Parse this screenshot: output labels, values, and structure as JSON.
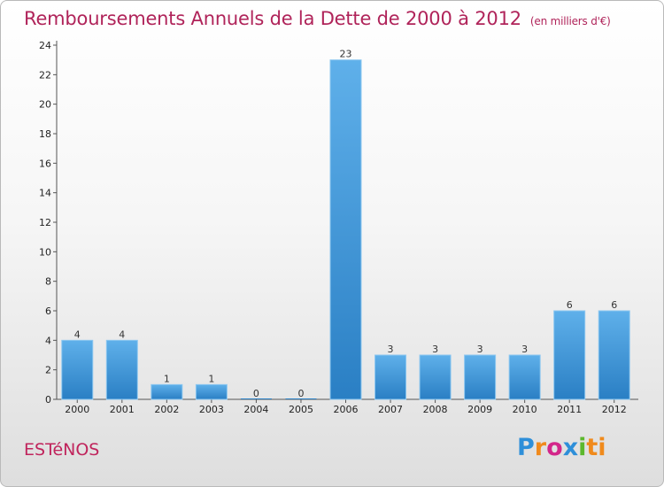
{
  "title": "Remboursements Annuels de la Dette de 2000 à 2012",
  "subtitle": "(en milliers d'€)",
  "commune": "ESTéNOS",
  "logo": {
    "l1": "P",
    "l2": "r",
    "l3": "o",
    "l4": "x",
    "l5": "i",
    "l6": "ti"
  },
  "colors": {
    "bar_top": "#5fb0ea",
    "bar_bottom": "#2a7fc4",
    "title": "#b0245a",
    "axis": "#555555",
    "grid": "#cfcfcf"
  },
  "chart_data": {
    "type": "bar",
    "title": "Remboursements Annuels de la Dette de 2000 à 2012",
    "xlabel": "",
    "ylabel": "",
    "ylim": [
      0,
      24
    ],
    "yticks": [
      0,
      2,
      4,
      6,
      8,
      10,
      12,
      14,
      16,
      18,
      20,
      22,
      24
    ],
    "categories": [
      "2000",
      "2001",
      "2002",
      "2003",
      "2004",
      "2005",
      "2006",
      "2007",
      "2008",
      "2009",
      "2010",
      "2011",
      "2012"
    ],
    "values": [
      4,
      4,
      1,
      1,
      0,
      0,
      23,
      3,
      3,
      3,
      3,
      6,
      6
    ],
    "grid": false,
    "legend": "none"
  }
}
